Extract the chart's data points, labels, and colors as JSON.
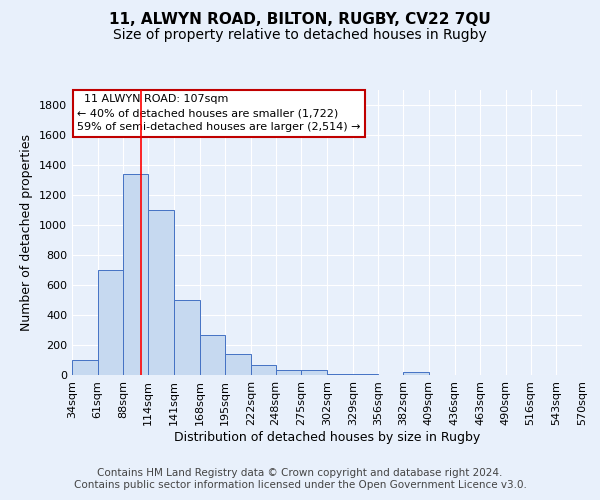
{
  "title": "11, ALWYN ROAD, BILTON, RUGBY, CV22 7QU",
  "subtitle": "Size of property relative to detached houses in Rugby",
  "xlabel": "Distribution of detached houses by size in Rugby",
  "ylabel": "Number of detached properties",
  "bar_values": [
    100,
    700,
    1340,
    1100,
    500,
    270,
    140,
    70,
    35,
    35,
    10,
    10,
    0,
    20,
    0,
    0,
    0,
    0,
    0,
    0
  ],
  "bin_edges": [
    34,
    61,
    88,
    114,
    141,
    168,
    195,
    222,
    248,
    275,
    302,
    329,
    356,
    382,
    409,
    436,
    463,
    490,
    516,
    543,
    570
  ],
  "tick_labels": [
    "34sqm",
    "61sqm",
    "88sqm",
    "114sqm",
    "141sqm",
    "168sqm",
    "195sqm",
    "222sqm",
    "248sqm",
    "275sqm",
    "302sqm",
    "329sqm",
    "356sqm",
    "382sqm",
    "409sqm",
    "436sqm",
    "463sqm",
    "490sqm",
    "516sqm",
    "543sqm",
    "570sqm"
  ],
  "bar_color": "#c6d9f0",
  "bar_edge_color": "#4472c4",
  "red_line_x": 107,
  "ylim": [
    0,
    1900
  ],
  "yticks": [
    0,
    200,
    400,
    600,
    800,
    1000,
    1200,
    1400,
    1600,
    1800
  ],
  "annotation_box_text": "  11 ALWYN ROAD: 107sqm\n← 40% of detached houses are smaller (1,722)\n59% of semi-detached houses are larger (2,514) →",
  "annotation_box_color": "#ffffff",
  "annotation_box_edgecolor": "#c00000",
  "footer_text": "Contains HM Land Registry data © Crown copyright and database right 2024.\nContains public sector information licensed under the Open Government Licence v3.0.",
  "background_color": "#e8f0fb",
  "grid_color": "#ffffff",
  "title_fontsize": 11,
  "subtitle_fontsize": 10,
  "axis_label_fontsize": 9,
  "tick_fontsize": 8,
  "footer_fontsize": 7.5
}
